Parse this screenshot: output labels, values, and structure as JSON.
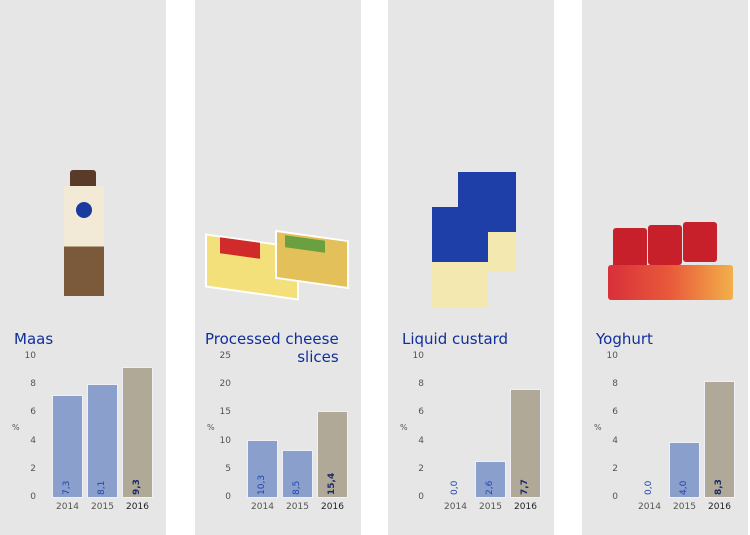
{
  "colors": {
    "bar": "#8a9fcb",
    "bar_current": "#b1a998",
    "title": "#102f9c"
  },
  "chart_data": [
    {
      "type": "bar",
      "title": "Maas",
      "title_lines": [
        "Maas"
      ],
      "ylabel": "%",
      "ylim": [
        0,
        10
      ],
      "yticks": [
        "0",
        "2",
        "4",
        "6",
        "8",
        "10"
      ],
      "categories": [
        "2014",
        "2015",
        "2016"
      ],
      "values": [
        7.3,
        8.1,
        9.3
      ],
      "labels": [
        "7,3",
        "8,1",
        "9,3"
      ]
    },
    {
      "type": "bar",
      "title": "Processed cheese slices",
      "title_lines": [
        "Processed cheese",
        "slices"
      ],
      "ylabel": "%",
      "ylim": [
        0,
        25
      ],
      "yticks": [
        "0",
        "5",
        "10",
        "15",
        "20",
        "25"
      ],
      "categories": [
        "2014",
        "2015",
        "2016"
      ],
      "values": [
        10.3,
        8.5,
        15.4
      ],
      "labels": [
        "10,3",
        "8,5",
        "15,4"
      ]
    },
    {
      "type": "bar",
      "title": "Liquid custard",
      "title_lines": [
        "Liquid custard"
      ],
      "ylabel": "%",
      "ylim": [
        0,
        10
      ],
      "yticks": [
        "0",
        "2",
        "4",
        "6",
        "8",
        "10"
      ],
      "categories": [
        "2014",
        "2015",
        "2016"
      ],
      "values": [
        0.0,
        2.6,
        7.7
      ],
      "labels": [
        "0,0",
        "2,6",
        "7,7"
      ]
    },
    {
      "type": "bar",
      "title": "Yoghurt",
      "title_lines": [
        "Yoghurt"
      ],
      "ylabel": "%",
      "ylim": [
        0,
        10
      ],
      "yticks": [
        "0",
        "2",
        "4",
        "6",
        "8",
        "10"
      ],
      "categories": [
        "2014",
        "2015",
        "2016"
      ],
      "values": [
        0.0,
        4.0,
        8.3
      ],
      "labels": [
        "0,0",
        "4,0",
        "8,3"
      ]
    }
  ]
}
